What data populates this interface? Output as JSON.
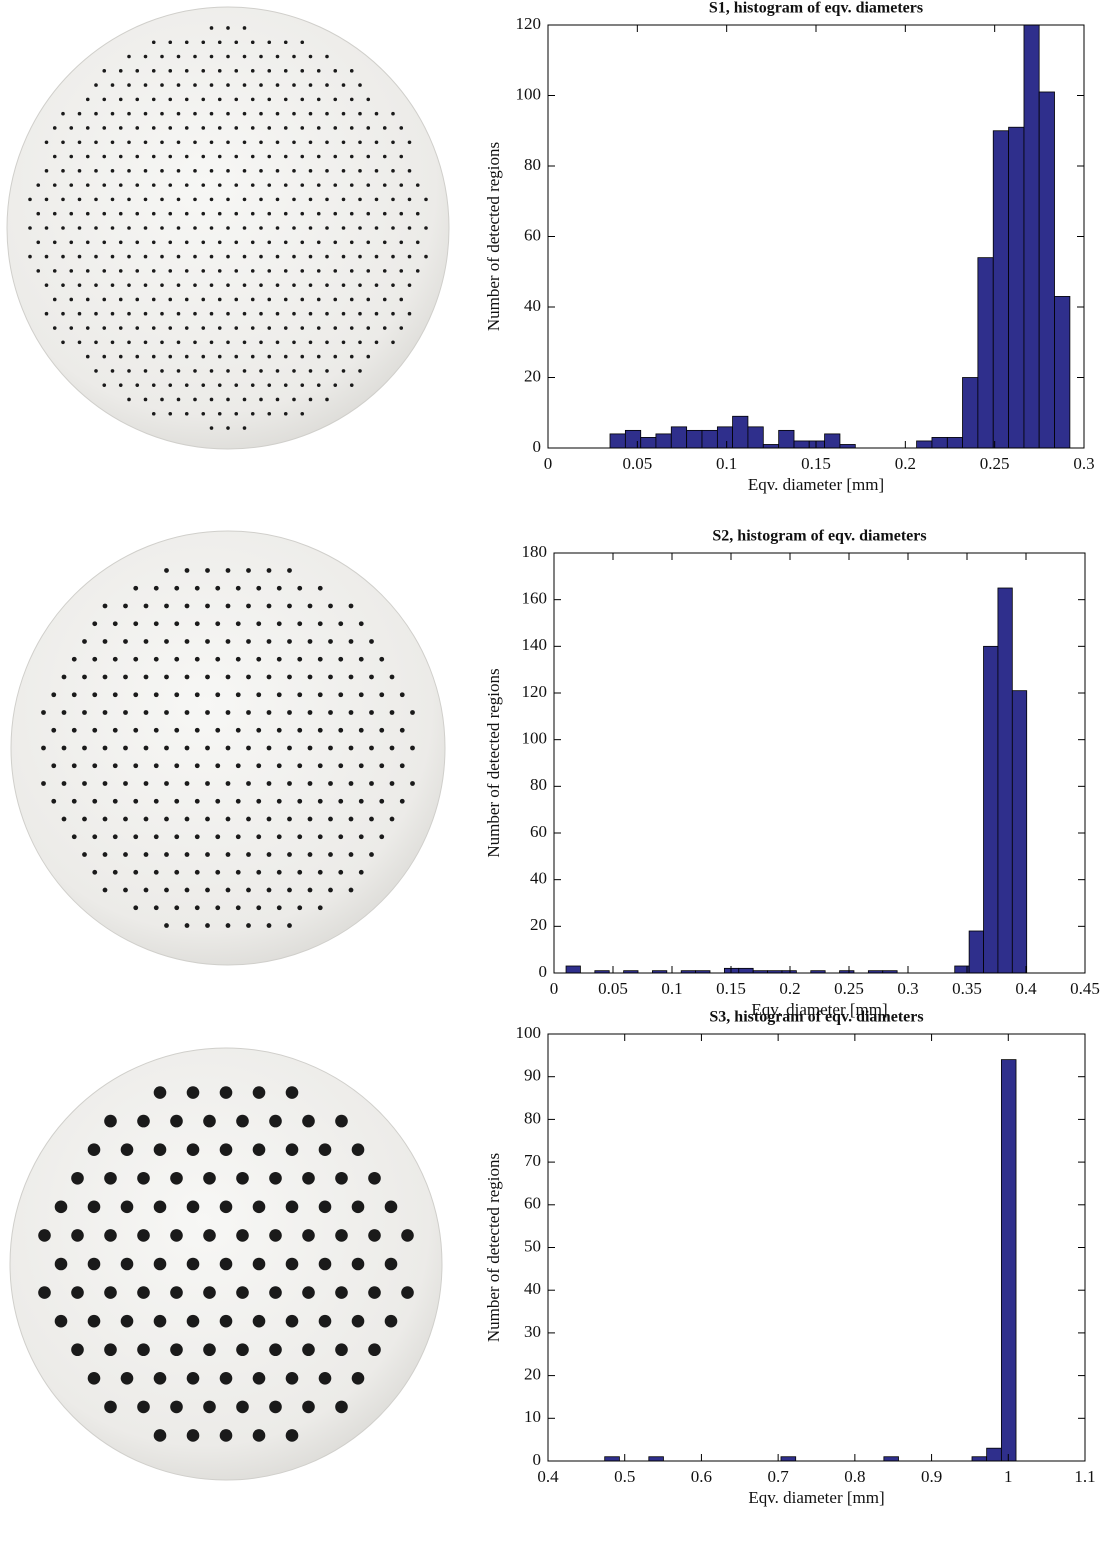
{
  "chart_data": [
    {
      "type": "histogram",
      "title": "S1, histogram of eqv. diameters",
      "xlabel": "Eqv. diameter [mm]",
      "ylabel": "Number of detected regions",
      "bins": [
        0.0347,
        0.0433,
        0.0519,
        0.0604,
        0.069,
        0.0776,
        0.0862,
        0.0948,
        0.1033,
        0.1119,
        0.1205,
        0.1291,
        0.1377,
        0.1462,
        0.1548,
        0.1634,
        0.172,
        0.1806,
        0.1891,
        0.1977,
        0.2063,
        0.2149,
        0.2235,
        0.232,
        0.2406,
        0.2492,
        0.2578,
        0.2664,
        0.2749,
        0.2835,
        0.2921
      ],
      "values": [
        4,
        5,
        3,
        4,
        6,
        5,
        5,
        6,
        9,
        6,
        1,
        5,
        2,
        2,
        4,
        1,
        0,
        0,
        0,
        0,
        2,
        3,
        3,
        20,
        54,
        90,
        91,
        120,
        101,
        43
      ],
      "color": "#2f2f8c",
      "xlim": [
        0,
        0.3
      ],
      "ylim": [
        0,
        120
      ],
      "xticks": [
        0,
        0.05,
        0.1,
        0.15,
        0.2,
        0.25,
        0.3
      ],
      "yticks": [
        0,
        20,
        40,
        60,
        80,
        100,
        120
      ]
    },
    {
      "type": "histogram",
      "title": "S2, histogram of eqv. diameters",
      "xlabel": "Eqv. diameter [mm]",
      "ylabel": "Number of detected regions",
      "bins": [
        0.0102,
        0.0224,
        0.0346,
        0.0468,
        0.059,
        0.0712,
        0.0834,
        0.0956,
        0.1078,
        0.12,
        0.1322,
        0.1444,
        0.1566,
        0.1688,
        0.181,
        0.1932,
        0.2054,
        0.2176,
        0.2298,
        0.242,
        0.2542,
        0.2664,
        0.2786,
        0.2908,
        0.303,
        0.3152,
        0.3274,
        0.3396,
        0.3518,
        0.364,
        0.3762,
        0.3884,
        0.4006
      ],
      "values": [
        3,
        0,
        1,
        0,
        1,
        0,
        1,
        0,
        1,
        1,
        0,
        2,
        2,
        1,
        1,
        1,
        0,
        1,
        0,
        1,
        0,
        1,
        1,
        0,
        0,
        0,
        0,
        3,
        18,
        140,
        165,
        121
      ],
      "color": "#2f2f8c",
      "xlim": [
        0,
        0.45
      ],
      "ylim": [
        0,
        180
      ],
      "xticks": [
        0,
        0.05,
        0.1,
        0.15,
        0.2,
        0.25,
        0.3,
        0.35,
        0.4,
        0.45
      ],
      "yticks": [
        0,
        20,
        40,
        60,
        80,
        100,
        120,
        140,
        160,
        180
      ]
    },
    {
      "type": "histogram",
      "title": "S3, histogram of eqv. diameters",
      "xlabel": "Eqv. diameter [mm]",
      "ylabel": "Number of detected regions",
      "bins": [
        0.4739,
        0.4931,
        0.5122,
        0.5314,
        0.5505,
        0.5697,
        0.5888,
        0.608,
        0.6271,
        0.6463,
        0.6654,
        0.6846,
        0.7037,
        0.7229,
        0.742,
        0.7612,
        0.7803,
        0.7995,
        0.8186,
        0.8378,
        0.8569,
        0.8761,
        0.8952,
        0.9144,
        0.9335,
        0.9527,
        0.9718,
        0.991,
        1.0101
      ],
      "values": [
        1,
        0,
        0,
        1,
        0,
        0,
        0,
        0,
        0,
        0,
        0,
        0,
        1,
        0,
        0,
        0,
        0,
        0,
        0,
        1,
        0,
        0,
        0,
        0,
        0,
        1,
        3,
        94
      ],
      "color": "#2f2f8c",
      "xlim": [
        0.4,
        1.1
      ],
      "ylim": [
        0,
        100
      ],
      "xticks": [
        0.4,
        0.5,
        0.6,
        0.7,
        0.8,
        0.9,
        1,
        1.1
      ],
      "yticks": [
        0,
        10,
        20,
        30,
        40,
        50,
        60,
        70,
        80,
        90,
        100
      ]
    }
  ]
}
